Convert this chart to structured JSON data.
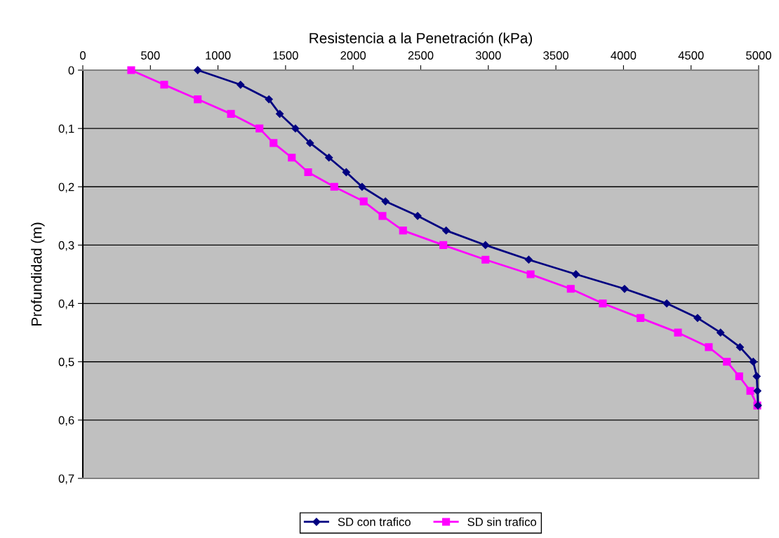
{
  "chart_data": {
    "type": "line",
    "xlabel": "Resistencia a la Penetración (kPa)",
    "ylabel": "Profundidad (m)",
    "xlim": [
      0,
      5000
    ],
    "xticks": [
      0,
      500,
      1000,
      1500,
      2000,
      2500,
      3000,
      3500,
      4000,
      4500,
      5000
    ],
    "ylim": [
      0.7,
      0
    ],
    "yticks": [
      0,
      {
        "value": 0.1,
        "label": "0,1"
      },
      {
        "value": 0.2,
        "label": "0,2"
      },
      {
        "value": 0.3,
        "label": "0,3"
      },
      {
        "value": 0.4,
        "label": "0,4"
      },
      {
        "value": 0.5,
        "label": "0,5"
      },
      {
        "value": 0.6,
        "label": "0,6"
      },
      {
        "value": 0.7,
        "label": "0,7"
      }
    ],
    "grid": "y",
    "legend": "bottom",
    "series": [
      {
        "name": "SD con trafico",
        "color": "#000080",
        "marker": "diamond",
        "x": [
          850,
          1167,
          1377,
          1457,
          1573,
          1681,
          1821,
          1949,
          2066,
          2239,
          2477,
          2688,
          2979,
          3299,
          3648,
          4008,
          4320,
          4548,
          4718,
          4862,
          4960,
          4986,
          4991,
          4995
        ],
        "values": [
          0,
          0.025,
          0.05,
          0.075,
          0.1,
          0.125,
          0.15,
          0.175,
          0.2,
          0.225,
          0.25,
          0.275,
          0.3,
          0.325,
          0.35,
          0.375,
          0.4,
          0.425,
          0.45,
          0.475,
          0.5,
          0.525,
          0.55,
          0.575
        ]
      },
      {
        "name": "SD sin trafico",
        "color": "#ff00ff",
        "marker": "square",
        "x": [
          358,
          602,
          850,
          1096,
          1307,
          1411,
          1546,
          1667,
          1860,
          2078,
          2217,
          2369,
          2667,
          2979,
          3313,
          3610,
          3847,
          4126,
          4403,
          4631,
          4765,
          4856,
          4938,
          4990
        ],
        "values": [
          0,
          0.025,
          0.05,
          0.075,
          0.1,
          0.125,
          0.15,
          0.175,
          0.2,
          0.225,
          0.25,
          0.275,
          0.3,
          0.325,
          0.35,
          0.375,
          0.4,
          0.425,
          0.45,
          0.475,
          0.5,
          0.525,
          0.55,
          0.575
        ]
      }
    ]
  }
}
